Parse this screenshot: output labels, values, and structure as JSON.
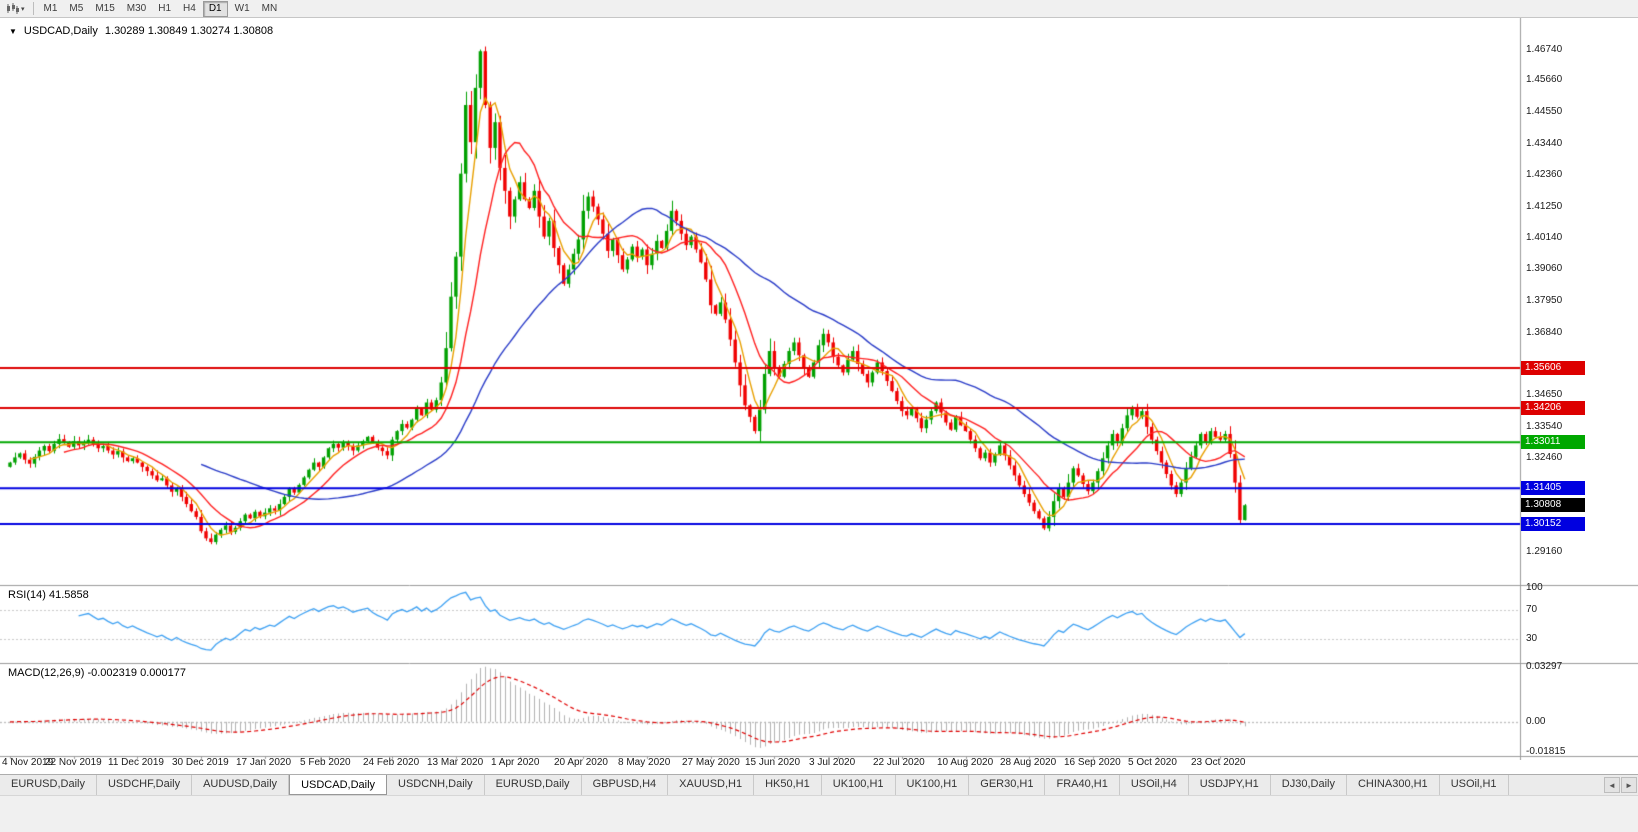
{
  "toolbar": {
    "chart_icon": "candlestick-chart-icon",
    "timeframes": [
      "M1",
      "M5",
      "M15",
      "M30",
      "H1",
      "H4",
      "D1",
      "W1",
      "MN"
    ],
    "active_timeframe": "D1"
  },
  "chart": {
    "dropdown_marker": "▼",
    "symbol": "USDCAD,Daily",
    "ohlc": "1.30289 1.30849 1.30274 1.30808"
  },
  "price_axis": {
    "labels": [
      "1.46740",
      "1.45660",
      "1.44550",
      "1.43440",
      "1.42360",
      "1.41250",
      "1.40140",
      "1.39060",
      "1.37950",
      "1.36840",
      "1.34650",
      "1.33540",
      "1.32460",
      "1.29160"
    ]
  },
  "levels": [
    {
      "label": "1.35606",
      "value": 1.35606,
      "color": "#dd0000"
    },
    {
      "label": "1.34206",
      "value": 1.34206,
      "color": "#dd0000"
    },
    {
      "label": "1.33011",
      "value": 1.33011,
      "color": "#00a800"
    },
    {
      "label": "1.31405",
      "value": 1.31405,
      "color": "#0000e0"
    },
    {
      "label": "1.30152",
      "value": 1.30152,
      "color": "#0000e0"
    }
  ],
  "current_price": {
    "label": "1.30808",
    "value": 1.30808,
    "bg": "#000000"
  },
  "panels": {
    "rsi": {
      "title": "RSI(14) 41.5858",
      "line_color": "#3da0f2",
      "levels": [
        {
          "label": "100",
          "value": 100
        },
        {
          "label": "70",
          "value": 70
        },
        {
          "label": "30",
          "value": 30
        }
      ],
      "level_lines": [
        70,
        30
      ]
    },
    "macd": {
      "title": "MACD(12,26,9) -0.002319 0.000177",
      "histogram_color": "#b2b2b2",
      "signal_color": "#e00000",
      "axis_labels": [
        {
          "label": "0.03297",
          "value": 0.032972
        },
        {
          "label": "0.00",
          "value": 0
        },
        {
          "label": "-0.01815",
          "value": -0.018154
        }
      ]
    }
  },
  "date_axis": {
    "bars_per_label": 13,
    "labels": [
      "4 Nov 2019",
      "22 Nov 2019",
      "11 Dec 2019",
      "30 Dec 2019",
      "17 Jan 2020",
      "5 Feb 2020",
      "24 Feb 2020",
      "13 Mar 2020",
      "1 Apr 2020",
      "20 Apr 2020",
      "8 May 2020",
      "27 May 2020",
      "15 Jun 2020",
      "3 Jul 2020",
      "22 Jul 2020",
      "10 Aug 2020",
      "28 Aug 2020",
      "16 Sep 2020",
      "5 Oct 2020",
      "23 Oct 2020"
    ]
  },
  "chart_data": {
    "type": "candlestick",
    "symbol": "USDCAD",
    "period": "Daily",
    "up_color": "#00a000",
    "down_color": "#f00000",
    "first_open": 1.3215,
    "closes": [
      1.323,
      1.3248,
      1.3262,
      1.324,
      1.3226,
      1.325,
      1.3272,
      1.3288,
      1.327,
      1.3295,
      1.3312,
      1.33,
      1.3285,
      1.3305,
      1.329,
      1.33,
      1.331,
      1.3295,
      1.328,
      1.3288,
      1.3272,
      1.3258,
      1.327,
      1.3248,
      1.3235,
      1.3245,
      1.323,
      1.3215,
      1.32,
      1.3185,
      1.3168,
      1.3175,
      1.315,
      1.3128,
      1.314,
      1.311,
      1.3085,
      1.306,
      1.304,
      1.299,
      1.2965,
      1.2952,
      1.2978,
      1.2995,
      1.301,
      1.2988,
      1.3002,
      1.3025,
      1.3048,
      1.3035,
      1.3058,
      1.3042,
      1.3055,
      1.307,
      1.3062,
      1.3085,
      1.311,
      1.3138,
      1.3125,
      1.3152,
      1.3178,
      1.3205,
      1.323,
      1.3215,
      1.3248,
      1.328,
      1.3295,
      1.3282,
      1.33,
      1.3288,
      1.3272,
      1.329,
      1.3305,
      1.332,
      1.3298,
      1.3282,
      1.327,
      1.3255,
      1.331,
      1.334,
      1.3365,
      1.3352,
      1.338,
      1.342,
      1.3395,
      1.344,
      1.3415,
      1.3448,
      1.351,
      1.363,
      1.381,
      1.395,
      1.424,
      1.448,
      1.435,
      1.454,
      1.4668,
      1.448,
      1.433,
      1.442,
      1.426,
      1.418,
      1.409,
      1.415,
      1.421,
      1.415,
      1.412,
      1.418,
      1.409,
      1.402,
      1.4075,
      1.398,
      1.392,
      1.3855,
      1.3905,
      1.396,
      1.401,
      1.411,
      1.416,
      1.4125,
      1.408,
      1.403,
      1.397,
      1.401,
      1.3955,
      1.3905,
      1.394,
      1.3985,
      1.395,
      1.3975,
      1.392,
      1.396,
      1.4005,
      1.398,
      1.404,
      1.411,
      1.4075,
      1.403,
      1.399,
      1.402,
      1.3975,
      1.393,
      1.387,
      1.378,
      1.375,
      1.379,
      1.373,
      1.366,
      1.358,
      1.35,
      1.343,
      1.339,
      1.334,
      1.3415,
      1.354,
      1.362,
      1.356,
      1.353,
      1.3575,
      1.362,
      1.365,
      1.3605,
      1.356,
      1.353,
      1.358,
      1.364,
      1.368,
      1.365,
      1.36,
      1.357,
      1.3545,
      1.359,
      1.362,
      1.3575,
      1.354,
      1.351,
      1.3545,
      1.358,
      1.355,
      1.3515,
      1.348,
      1.3445,
      1.341,
      1.3395,
      1.342,
      1.3385,
      1.335,
      1.338,
      1.341,
      1.344,
      1.3405,
      1.337,
      1.3345,
      1.339,
      1.336,
      1.334,
      1.331,
      1.328,
      1.3245,
      1.3265,
      1.323,
      1.326,
      1.329,
      1.3255,
      1.322,
      1.3185,
      1.315,
      1.312,
      1.309,
      1.306,
      1.3035,
      1.3,
      1.304,
      1.3095,
      1.314,
      1.311,
      1.316,
      1.321,
      1.3185,
      1.3155,
      1.313,
      1.316,
      1.32,
      1.3245,
      1.329,
      1.333,
      1.3305,
      1.335,
      1.3395,
      1.342,
      1.339,
      1.341,
      1.3355,
      1.331,
      1.327,
      1.323,
      1.319,
      1.315,
      1.312,
      1.316,
      1.321,
      1.325,
      1.329,
      1.333,
      1.33,
      1.334,
      1.332,
      1.331,
      1.333,
      1.326,
      1.316,
      1.3029,
      1.3081
    ],
    "overrides": [
      {
        "index": 96,
        "high": 1.4674
      },
      {
        "index": 211,
        "low": 1.2994
      },
      {
        "index": 251,
        "low": 1.3016
      },
      {
        "index": 252,
        "open": 1.30289,
        "high": 1.30849,
        "low": 1.30274,
        "close": 1.30808
      }
    ],
    "moving_averages": [
      {
        "period": 5,
        "color": "#e8a000"
      },
      {
        "period": 12,
        "color": "#ff2020"
      },
      {
        "period": 40,
        "color": "#2a3cc8"
      }
    ],
    "indicators": {
      "rsi_period": 14,
      "macd_params": [
        12,
        26,
        9
      ]
    }
  },
  "tabs": {
    "items": [
      {
        "label": "EURUSD,Daily",
        "active": false
      },
      {
        "label": "USDCHF,Daily",
        "active": false
      },
      {
        "label": "AUDUSD,Daily",
        "active": false
      },
      {
        "label": "USDCAD,Daily",
        "active": true
      },
      {
        "label": "USDCNH,Daily",
        "active": false
      },
      {
        "label": "EURUSD,Daily",
        "active": false
      },
      {
        "label": "GBPUSD,H4",
        "active": false
      },
      {
        "label": "XAUUSD,H1",
        "active": false
      },
      {
        "label": "HK50,H1",
        "active": false
      },
      {
        "label": "UK100,H1",
        "active": false
      },
      {
        "label": "UK100,H1",
        "active": false
      },
      {
        "label": "GER30,H1",
        "active": false
      },
      {
        "label": "FRA40,H1",
        "active": false
      },
      {
        "label": "USOil,H4",
        "active": false
      },
      {
        "label": "USDJPY,H1",
        "active": false
      },
      {
        "label": "DJ30,Daily",
        "active": false
      },
      {
        "label": "CHINA300,H1",
        "active": false
      },
      {
        "label": "USOil,H1",
        "active": false
      }
    ],
    "scroll_left": "◄",
    "scroll_right": "►"
  }
}
